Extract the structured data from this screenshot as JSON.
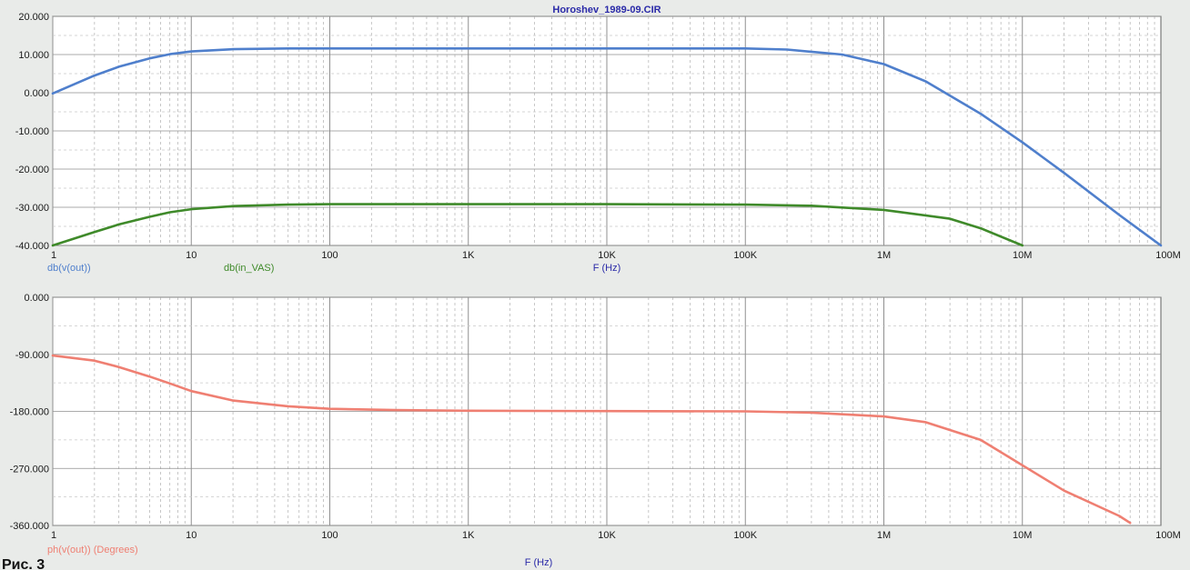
{
  "figure": {
    "caption": "Рис. 3"
  },
  "chart_data": [
    {
      "type": "line",
      "title": "Horoshev_1989-09.CIR",
      "xlabel": "F (Hz)",
      "ylabel": "",
      "x_scale": "log",
      "xlim": [
        1,
        100000000
      ],
      "ylim": [
        -40,
        20
      ],
      "grid": true,
      "x_ticks": [
        "1",
        "10",
        "100",
        "1K",
        "10K",
        "100K",
        "1M",
        "10M",
        "100M"
      ],
      "y_ticks": [
        "20.000",
        "10.000",
        "0.000",
        "-10.000",
        "-20.000",
        "-30.000",
        "-40.000"
      ],
      "series": [
        {
          "name": "db(v(out))",
          "color": "#4f7fcc",
          "x": [
            1,
            2,
            3,
            5,
            7,
            10,
            20,
            50,
            100,
            1000,
            10000,
            100000,
            200000,
            500000,
            1000000,
            2000000,
            5000000,
            10000000,
            20000000,
            50000000,
            100000000
          ],
          "y": [
            -0.2,
            4.5,
            6.8,
            9.0,
            10.1,
            10.8,
            11.4,
            11.6,
            11.6,
            11.6,
            11.6,
            11.6,
            11.3,
            10.0,
            7.5,
            3.0,
            -5.5,
            -13.0,
            -21.0,
            -32.0,
            -40.0
          ]
        },
        {
          "name": "db(in_VAS)",
          "color": "#3f8a2a",
          "x": [
            1,
            2,
            3,
            5,
            7,
            10,
            20,
            50,
            100,
            1000,
            10000,
            100000,
            300000,
            1000000,
            3000000,
            5000000,
            10000000
          ],
          "y": [
            -40.0,
            -36.5,
            -34.5,
            -32.5,
            -31.3,
            -30.5,
            -29.7,
            -29.3,
            -29.2,
            -29.2,
            -29.2,
            -29.3,
            -29.6,
            -30.7,
            -33.0,
            -35.5,
            -40.0
          ]
        }
      ]
    },
    {
      "type": "line",
      "title": "",
      "xlabel": "F (Hz)",
      "ylabel": "",
      "x_scale": "log",
      "xlim": [
        1,
        100000000
      ],
      "ylim": [
        -360,
        0
      ],
      "grid": true,
      "x_ticks": [
        "1",
        "10",
        "100",
        "1K",
        "10K",
        "100K",
        "1M",
        "10M",
        "100M"
      ],
      "y_ticks": [
        "0.000",
        "-90.000",
        "-180.000",
        "-270.000",
        "-360.000"
      ],
      "series": [
        {
          "name": "ph(v(out)) (Degrees)",
          "color": "#ef7f72",
          "x": [
            1,
            2,
            3,
            5,
            7,
            10,
            20,
            50,
            100,
            300,
            1000,
            10000,
            100000,
            300000,
            1000000,
            2000000,
            5000000,
            10000000,
            20000000,
            50000000,
            60000000
          ],
          "y": [
            -92,
            -100,
            -110,
            -125,
            -136,
            -148,
            -163,
            -172,
            -176,
            -178,
            -179,
            -179.5,
            -180,
            -182,
            -188,
            -197,
            -225,
            -265,
            -305,
            -345,
            -356
          ]
        }
      ]
    }
  ]
}
